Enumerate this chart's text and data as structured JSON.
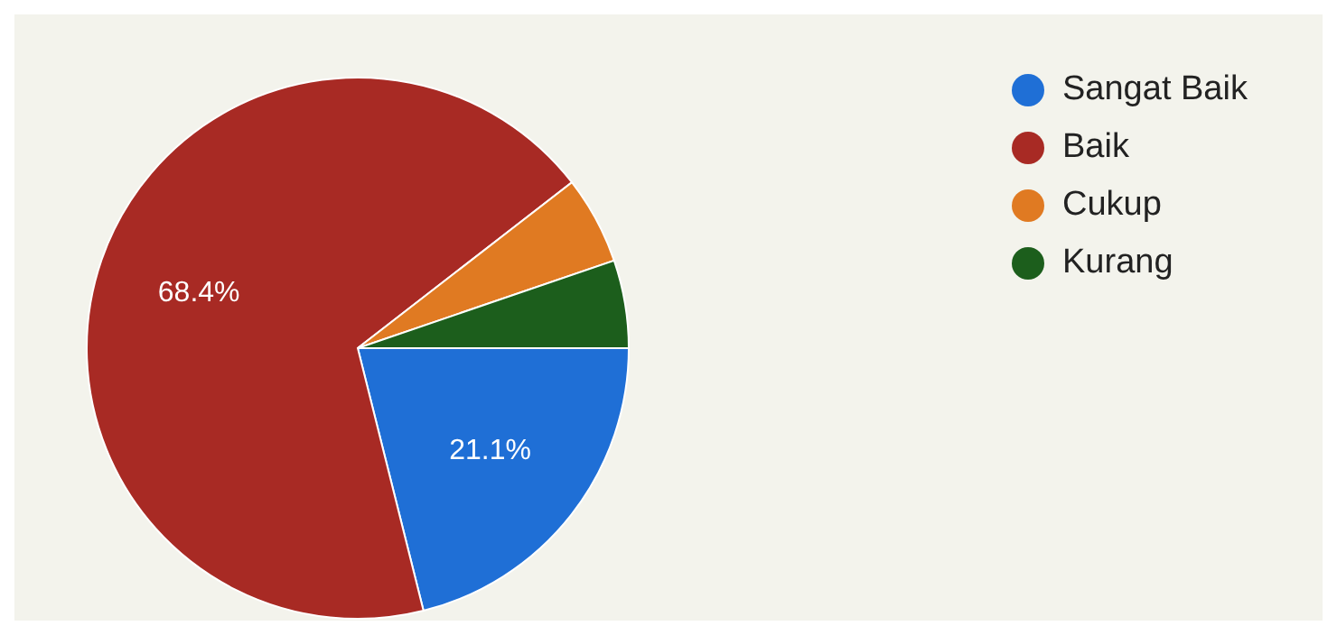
{
  "chart_data": {
    "type": "pie",
    "categories": [
      "Sangat Baik",
      "Baik",
      "Cukup",
      "Kurang"
    ],
    "values": [
      21.1,
      68.4,
      5.25,
      5.25
    ],
    "colors": [
      "#1f6fd6",
      "#a82a24",
      "#e07a22",
      "#1c5e1c"
    ],
    "value_labels": [
      "21.1%",
      "68.4%",
      null,
      null
    ],
    "legend": "top right"
  }
}
